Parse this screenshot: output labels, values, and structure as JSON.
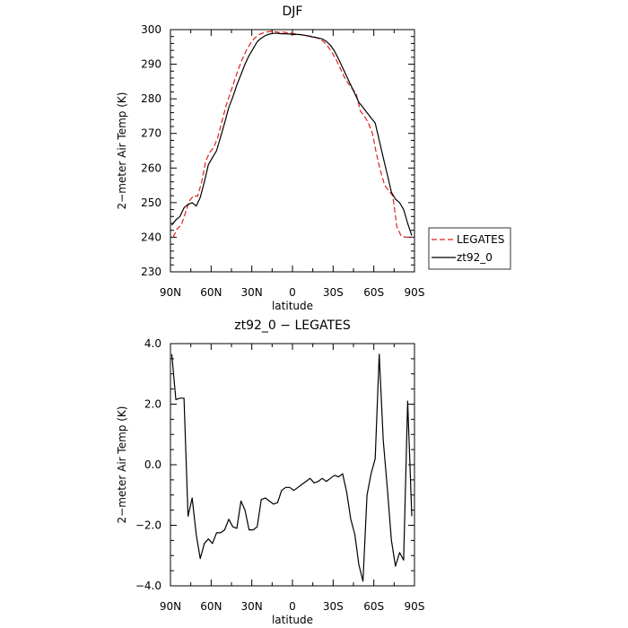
{
  "chart_data": [
    {
      "type": "line",
      "title": "DJF",
      "xlabel": "latitude",
      "ylabel": "2−meter Air Temp (K)",
      "xlim": [
        90,
        -90
      ],
      "ylim": [
        230,
        300
      ],
      "x_ticks": [
        90,
        60,
        30,
        0,
        -30,
        -60,
        -90
      ],
      "x_tick_labels": [
        "90N",
        "60N",
        "30N",
        "0",
        "30S",
        "60S",
        "90S"
      ],
      "y_ticks": [
        230,
        240,
        250,
        260,
        270,
        280,
        290,
        300
      ],
      "y_tick_labels": [
        "230",
        "240",
        "250",
        "260",
        "270",
        "280",
        "290",
        "300"
      ],
      "grid": false,
      "legend_position": "outside-right",
      "series": [
        {
          "name": "LEGATES",
          "color": "#e02020",
          "dash": "dashed",
          "x": [
            88,
            85,
            82,
            79,
            76,
            73,
            70,
            67,
            64,
            61,
            58,
            55,
            52,
            49,
            46,
            43,
            40,
            37,
            34,
            31,
            28,
            25,
            22,
            19,
            16,
            13,
            10,
            7,
            4,
            1,
            -2,
            -5,
            -8,
            -11,
            -14,
            -17,
            -20,
            -23,
            -26,
            -29,
            -32,
            -35,
            -38,
            -41,
            -44,
            -47,
            -50,
            -53,
            -56,
            -59,
            -62,
            -65,
            -68,
            -71,
            -74,
            -77,
            -80,
            -83,
            -86,
            -89
          ],
          "values": [
            240.0,
            242.5,
            243.5,
            247.0,
            250.5,
            252.0,
            251.8,
            256.0,
            262.0,
            264.5,
            266.0,
            269.0,
            273.5,
            278.0,
            281.5,
            285.0,
            288.5,
            291.5,
            294.0,
            296.0,
            297.5,
            298.5,
            299.0,
            299.3,
            299.5,
            299.4,
            299.2,
            299.3,
            299.1,
            299.0,
            298.8,
            298.6,
            298.4,
            298.2,
            298.1,
            297.8,
            297.3,
            296.5,
            295.2,
            293.5,
            291.5,
            289.0,
            286.5,
            284.5,
            283.0,
            281.5,
            276.5,
            275.0,
            273.0,
            270.0,
            264.0,
            259.0,
            255.0,
            253.5,
            252.0,
            243.0,
            240.5,
            240.0,
            240.0,
            240.0
          ]
        },
        {
          "name": "zt92_0",
          "color": "#000000",
          "dash": "solid",
          "x": [
            89,
            86,
            83,
            80,
            77,
            74,
            71,
            68,
            65,
            62,
            59,
            56,
            53,
            50,
            47,
            44,
            41,
            38,
            35,
            32,
            29,
            26,
            23,
            20,
            17,
            14,
            11,
            8,
            5,
            2,
            -1,
            -4,
            -7,
            -10,
            -13,
            -16,
            -19,
            -22,
            -25,
            -28,
            -31,
            -34,
            -37,
            -40,
            -43,
            -46,
            -49,
            -52,
            -55,
            -58,
            -61,
            -64,
            -67,
            -70,
            -73,
            -76,
            -79,
            -82,
            -85,
            -88
          ],
          "values": [
            243.5,
            245.0,
            246.0,
            248.5,
            249.5,
            250.0,
            249.0,
            251.5,
            256.0,
            261.0,
            263.0,
            265.0,
            269.0,
            273.0,
            277.5,
            280.5,
            284.0,
            287.0,
            290.0,
            292.5,
            294.5,
            296.5,
            297.5,
            298.3,
            298.7,
            298.9,
            298.9,
            298.8,
            298.8,
            298.7,
            298.6,
            298.6,
            298.5,
            298.3,
            298.0,
            297.8,
            297.6,
            297.3,
            296.6,
            295.5,
            293.8,
            291.5,
            289.0,
            286.5,
            284.0,
            281.5,
            279.0,
            277.5,
            276.0,
            274.5,
            273.0,
            268.0,
            263.0,
            258.0,
            253.0,
            251.0,
            250.0,
            248.0,
            244.0,
            240.5
          ]
        }
      ]
    },
    {
      "type": "line",
      "title": "zt92_0 − LEGATES",
      "xlabel": "latitude",
      "ylabel": "2−meter Air Temp (K)",
      "xlim": [
        90,
        -90
      ],
      "ylim": [
        -4.0,
        4.0
      ],
      "x_ticks": [
        90,
        60,
        30,
        0,
        -30,
        -60,
        -90
      ],
      "x_tick_labels": [
        "90N",
        "60N",
        "30N",
        "0",
        "30S",
        "60S",
        "90S"
      ],
      "y_ticks": [
        -4.0,
        -2.0,
        0.0,
        2.0,
        4.0
      ],
      "y_tick_labels": [
        "−4.0",
        "−2.0",
        "0.0",
        "2.0",
        "4.0"
      ],
      "grid": false,
      "series": [
        {
          "color": "#000000",
          "dash": "solid",
          "x": [
            89,
            86,
            83,
            80,
            77,
            74,
            71,
            68,
            65,
            62,
            59,
            56,
            53,
            50,
            47,
            44,
            41,
            38,
            35,
            32,
            29,
            26,
            23,
            20,
            17,
            14,
            11,
            8,
            5,
            2,
            -1,
            -4,
            -7,
            -10,
            -13,
            -16,
            -19,
            -22,
            -25,
            -28,
            -31,
            -34,
            -37,
            -40,
            -43,
            -46,
            -49,
            -52,
            -55,
            -58,
            -61,
            -64,
            -67,
            -70,
            -73,
            -76,
            -79,
            -82,
            -85,
            -88
          ],
          "values": [
            3.65,
            2.15,
            2.2,
            2.2,
            -1.7,
            -1.1,
            -2.3,
            -3.1,
            -2.6,
            -2.45,
            -2.6,
            -2.25,
            -2.25,
            -2.15,
            -1.8,
            -2.05,
            -2.1,
            -1.2,
            -1.5,
            -2.15,
            -2.15,
            -2.05,
            -1.15,
            -1.1,
            -1.2,
            -1.3,
            -1.25,
            -0.85,
            -0.75,
            -0.75,
            -0.85,
            -0.75,
            -0.65,
            -0.55,
            -0.45,
            -0.6,
            -0.55,
            -0.45,
            -0.55,
            -0.45,
            -0.35,
            -0.4,
            -0.3,
            -0.9,
            -1.8,
            -2.3,
            -3.3,
            -3.85,
            -1.0,
            -0.3,
            0.2,
            3.65,
            0.8,
            -0.8,
            -2.5,
            -3.35,
            -2.9,
            -3.15,
            2.1,
            -1.7
          ]
        }
      ]
    }
  ]
}
